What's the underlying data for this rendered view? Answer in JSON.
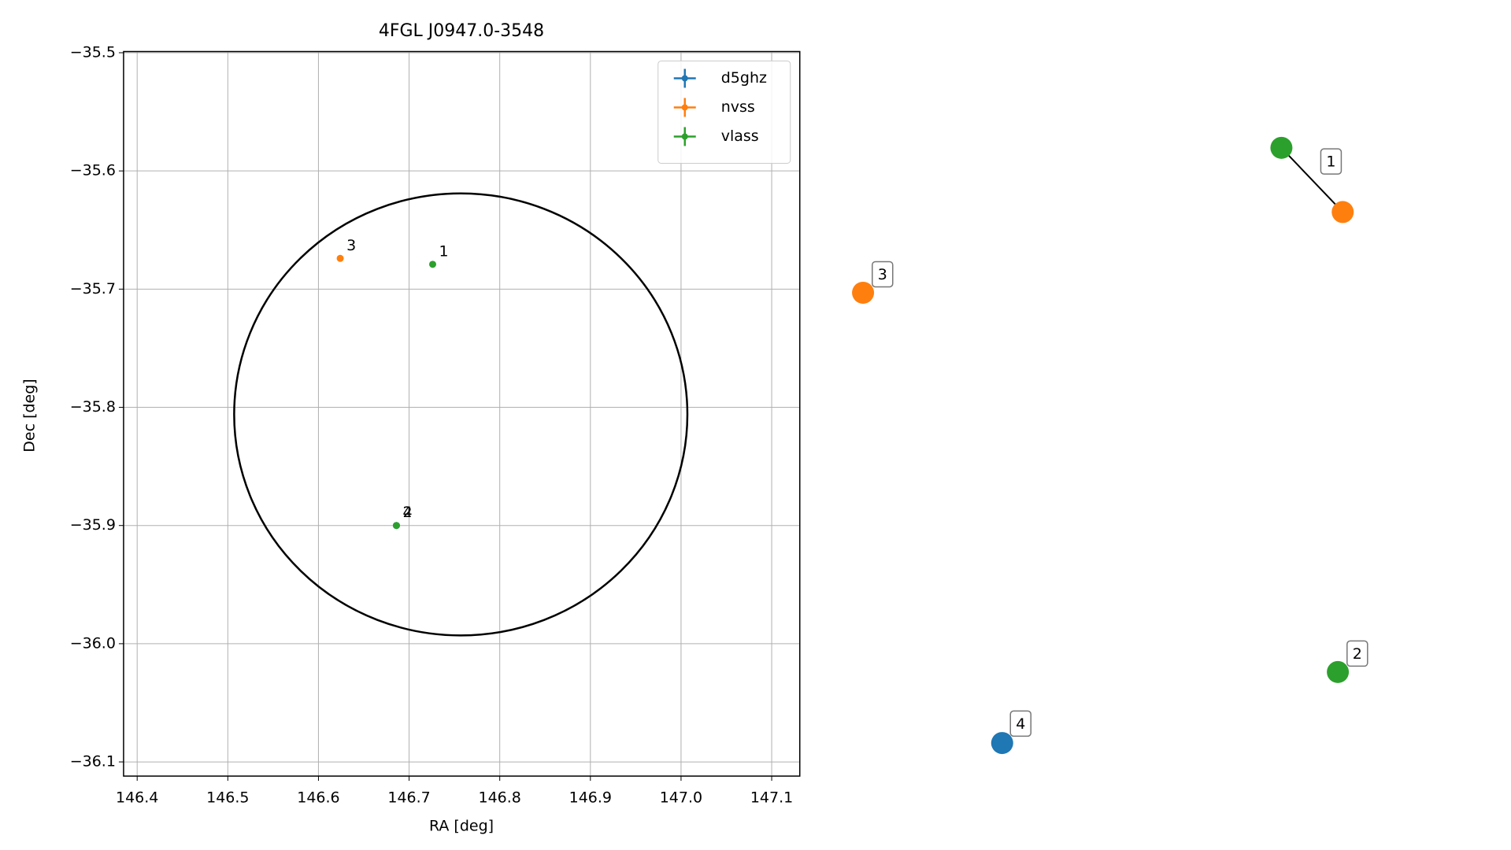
{
  "chart_data": {
    "type": "scatter",
    "title": "4FGL J0947.0-3548",
    "x_label": "RA [deg]",
    "y_label": "Dec [deg]",
    "xlim": [
      146.385,
      147.131
    ],
    "ylim": [
      -35.499,
      -36.112
    ],
    "xticks": [
      146.4,
      146.5,
      146.6,
      146.7,
      146.8,
      146.9,
      {
        "value": 147.0,
        "label": "147.0"
      },
      147.1
    ],
    "yticks": [
      {
        "value": -35.5,
        "label": "−35.5"
      },
      {
        "value": -35.6,
        "label": "−35.6"
      },
      {
        "value": -35.7,
        "label": "−35.7"
      },
      {
        "value": -35.8,
        "label": "−35.8"
      },
      {
        "value": -35.9,
        "label": "−35.9"
      },
      {
        "value": -36.0,
        "label": "−36.0"
      },
      {
        "value": -36.1,
        "label": "−36.1"
      }
    ],
    "grid": true,
    "legend": "upper right",
    "series": [
      {
        "name": "d5ghz",
        "color": "#1f77b4",
        "x": [
          146.686
        ],
        "y": [
          -35.9
        ],
        "labels": [
          "4"
        ]
      },
      {
        "name": "nvss",
        "color": "#ff7f0e",
        "x": [
          146.624
        ],
        "y": [
          -35.674
        ],
        "labels": [
          "3"
        ]
      },
      {
        "name": "vlass",
        "color": "#2ca02c",
        "x": [
          146.726,
          146.686
        ],
        "y": [
          -35.679,
          -35.9
        ],
        "labels": [
          "1",
          "2"
        ]
      }
    ],
    "ellipse": {
      "center": [
        146.757,
        -35.806
      ],
      "rx": 0.25,
      "ry": 0.187
    },
    "graph": [
      {
        "label": "1",
        "colors": [
          "#2ca02c",
          "#ff7f0e"
        ]
      },
      {
        "label": "3",
        "colors": [
          "#ff7f0e"
        ]
      },
      {
        "label": "2",
        "colors": [
          "#2ca02c"
        ]
      },
      {
        "label": "4",
        "colors": [
          "#1f77b4"
        ]
      }
    ]
  }
}
